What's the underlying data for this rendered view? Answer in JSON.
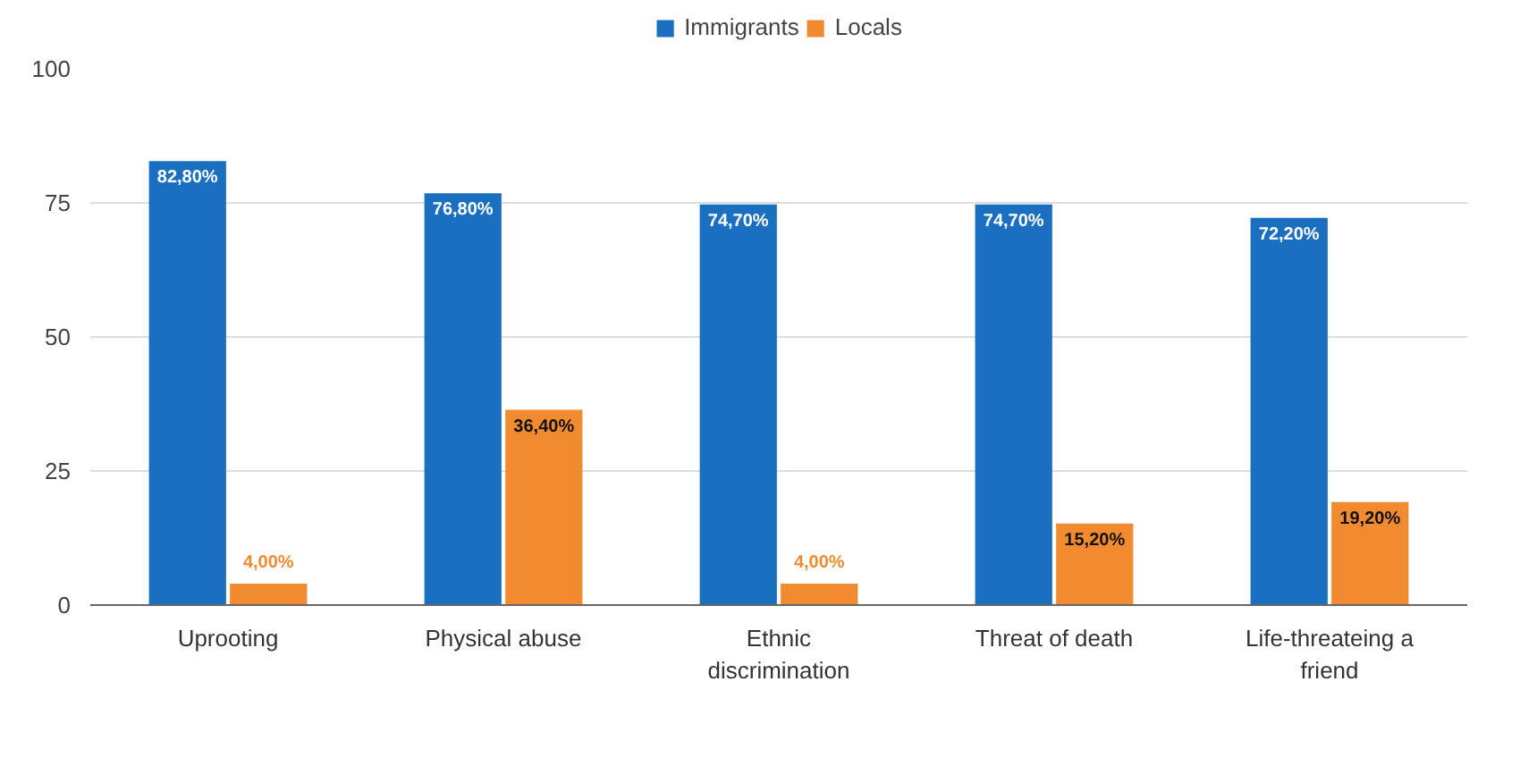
{
  "chart_data": {
    "type": "bar",
    "categories": [
      "Uprooting",
      "Physical abuse",
      "Ethnic\ndiscrimination",
      "Threat of death",
      "Life-threateing a\nfriend"
    ],
    "series": [
      {
        "name": "Immigrants",
        "color": "#1a6fc1",
        "values": [
          82.8,
          76.8,
          74.7,
          74.7,
          72.2
        ],
        "value_labels": [
          "82,80%",
          "76,80%",
          "74,70%",
          "74,70%",
          "72,20%"
        ]
      },
      {
        "name": "Locals",
        "color": "#f28a30",
        "values": [
          4,
          36.4,
          4,
          15.2,
          19.2
        ],
        "value_labels": [
          "4,00%",
          "36,40%",
          "4,00%",
          "15,20%",
          "19,20%"
        ]
      }
    ],
    "ylim": [
      0,
      100
    ],
    "yticks": [
      0,
      25,
      50,
      75,
      100
    ],
    "grid": "y",
    "legend": "top"
  }
}
